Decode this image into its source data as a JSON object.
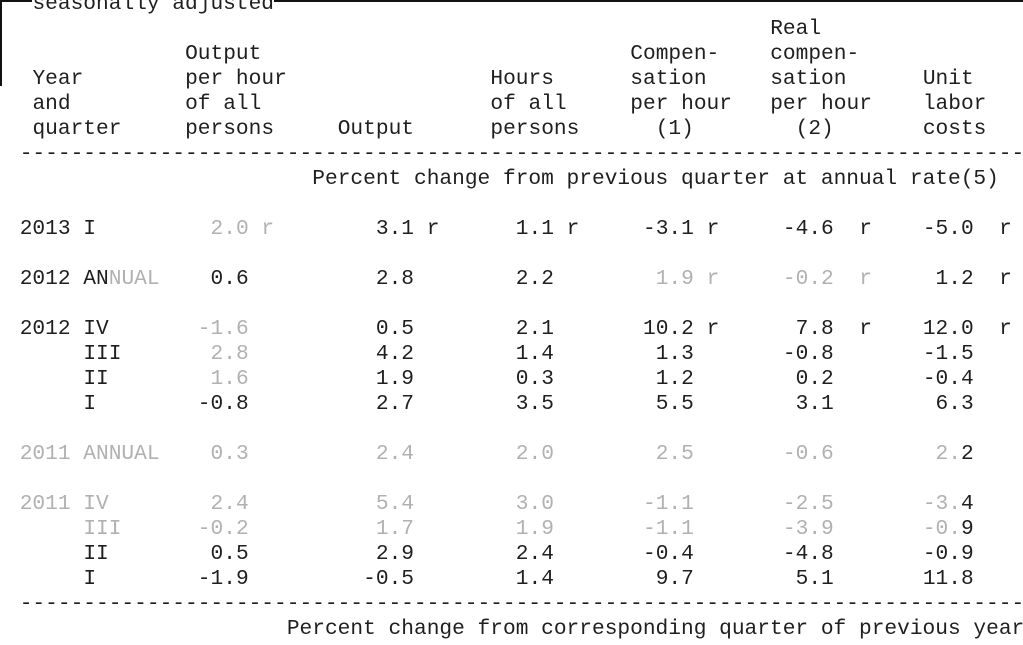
{
  "colors": {
    "ink": "#1f1f1f",
    "muted": "#b1b1b1"
  },
  "document": {
    "top_note": "seasonally adjusted",
    "separator": "------------------------------------------------------------------------------------",
    "rev_flag": "r",
    "header": {
      "col1": [
        "Year",
        "and",
        "quarter"
      ],
      "col2": [
        "Output",
        "per hour",
        "of all",
        "persons"
      ],
      "col3": [
        "Output"
      ],
      "col4": [
        "Hours",
        "of all",
        "persons"
      ],
      "col5": [
        "Compen-",
        "sation",
        "per hour",
        "(1)"
      ],
      "col6": [
        "Real",
        "compen-",
        "sation",
        "per hour",
        "(2)"
      ],
      "col7": [
        "Unit",
        "labor",
        "costs"
      ]
    },
    "section_title": "Percent change from previous quarter at annual rate(5)",
    "footer_title": "Percent change from corresponding quarter of previous year",
    "rows": [
      {
        "label": "2013 I",
        "gap": true,
        "cells": [
          {
            "v": "2.0",
            "g": true,
            "r": true
          },
          {
            "v": "3.1",
            "r": true
          },
          {
            "v": "1.1",
            "r": true
          },
          {
            "v": "-3.1",
            "r": true
          },
          {
            "v": "-4.6",
            "r": true
          },
          {
            "v": "-5.0",
            "r": true
          }
        ]
      },
      {
        "label_parts": [
          [
            "2012 AN",
            0
          ],
          [
            "NUAL",
            1
          ]
        ],
        "gap": true,
        "cells": [
          {
            "v": "0.6"
          },
          {
            "v": "2.8"
          },
          {
            "v": "2.2"
          },
          {
            "v": "1.9",
            "g": true,
            "r": true
          },
          {
            "v": "-0.2",
            "g": true,
            "r": true
          },
          {
            "v": "1.2",
            "r": true
          }
        ]
      },
      {
        "label": "2012 IV",
        "gap": true,
        "cells": [
          {
            "v": "-1.6",
            "g": true
          },
          {
            "v": "0.5"
          },
          {
            "v": "2.1"
          },
          {
            "v": "10.2",
            "r": true
          },
          {
            "v": "7.8",
            "r": true
          },
          {
            "v": "12.0",
            "r": true
          }
        ]
      },
      {
        "label": "III",
        "cells": [
          {
            "v": "2.8",
            "g": true
          },
          {
            "v": "4.2"
          },
          {
            "v": "1.4"
          },
          {
            "v": "1.3"
          },
          {
            "v": "-0.8"
          },
          {
            "v": "-1.5"
          }
        ]
      },
      {
        "label": "II",
        "cells": [
          {
            "v": "1.6",
            "g": true
          },
          {
            "v": "1.9"
          },
          {
            "v": "0.3"
          },
          {
            "v": "1.2"
          },
          {
            "v": "0.2"
          },
          {
            "v": "-0.4"
          }
        ]
      },
      {
        "label": "I",
        "cells": [
          {
            "v": "-0.8"
          },
          {
            "v": "2.7"
          },
          {
            "v": "3.5"
          },
          {
            "v": "5.5"
          },
          {
            "v": "3.1"
          },
          {
            "v": "6.3"
          }
        ]
      },
      {
        "label": "2011 ANNUAL",
        "g": true,
        "gap": true,
        "cells": [
          {
            "v": "0.3",
            "g": true
          },
          {
            "v": "2.4",
            "g": true
          },
          {
            "v": "2.0",
            "g": true
          },
          {
            "v": "2.5",
            "g": true
          },
          {
            "v": "-0.6",
            "g": true
          },
          {
            "v": [
              [
                "2.",
                1
              ],
              [
                "2",
                0
              ]
            ]
          }
        ]
      },
      {
        "label": "2011 IV",
        "g": true,
        "gap": true,
        "cells": [
          {
            "v": "2.4",
            "g": true
          },
          {
            "v": "5.4",
            "g": true
          },
          {
            "v": "3.0",
            "g": true
          },
          {
            "v": "-1.1",
            "g": true
          },
          {
            "v": "-2.5",
            "g": true
          },
          {
            "v": [
              [
                "-3.",
                1
              ],
              [
                "4",
                0
              ]
            ]
          }
        ]
      },
      {
        "label": "III",
        "g": true,
        "cells": [
          {
            "v": "-0.2",
            "g": true
          },
          {
            "v": "1.7",
            "g": true
          },
          {
            "v": "1.9",
            "g": true
          },
          {
            "v": "-1.1",
            "g": true
          },
          {
            "v": "-3.9",
            "g": true
          },
          {
            "v": [
              [
                "-0.",
                1
              ],
              [
                "9",
                0
              ]
            ]
          }
        ]
      },
      {
        "label": "II",
        "cells": [
          {
            "v": "0.5"
          },
          {
            "v": "2.9"
          },
          {
            "v": "2.4"
          },
          {
            "v": "-0.4"
          },
          {
            "v": "-4.8"
          },
          {
            "v": "-0.9"
          }
        ]
      },
      {
        "label": "I",
        "cells": [
          {
            "v": "-1.9"
          },
          {
            "v": "-0.5"
          },
          {
            "v": "1.4"
          },
          {
            "v": "9.7"
          },
          {
            "v": "5.1"
          },
          {
            "v": "11.8"
          }
        ]
      }
    ]
  }
}
